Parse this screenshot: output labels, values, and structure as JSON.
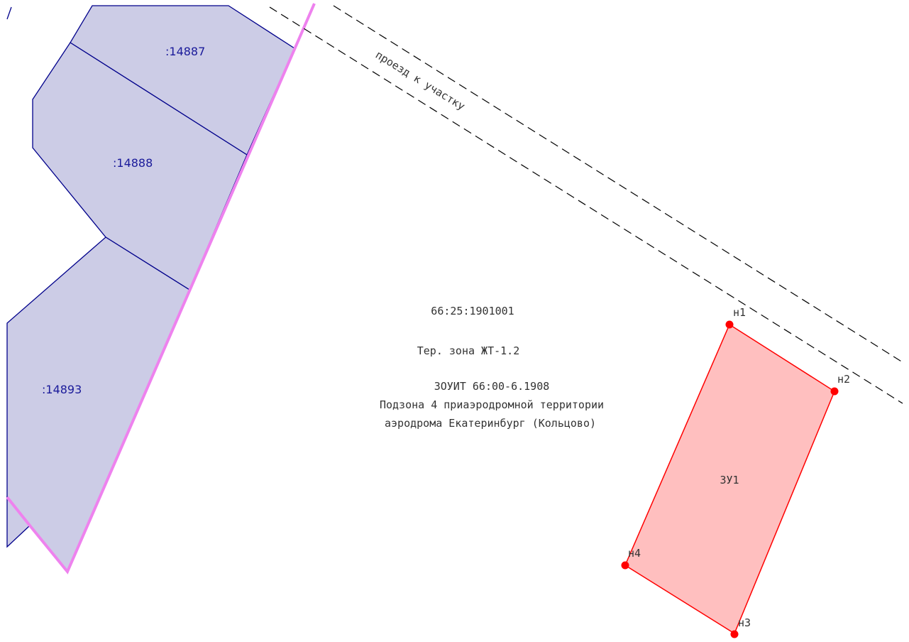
{
  "parcels": [
    {
      "id": "p14887",
      "label": ":14887"
    },
    {
      "id": "p14888",
      "label": ":14888"
    },
    {
      "id": "p14893",
      "label": ":14893"
    }
  ],
  "road": {
    "label": "проезд к участку"
  },
  "quarter": {
    "number": "66:25:1901001"
  },
  "zone": {
    "label": "Тер. зона ЖТ-1.2"
  },
  "zouit": {
    "line1": "ЗОУИТ 66:00-6.1908",
    "line2": "Подзона 4 приаэродромной территории",
    "line3": "аэродрома Екатеринбург (Кольцово)"
  },
  "new_parcel": {
    "label": "ЗУ1",
    "points": [
      {
        "name": "н1"
      },
      {
        "name": "н2"
      },
      {
        "name": "н3"
      },
      {
        "name": "н4"
      }
    ]
  },
  "colors": {
    "existing_fill": "#cccce6",
    "existing_stroke": "#00008b",
    "boundary": "#ee82ee",
    "new_fill": "#ffbfbf",
    "new_stroke": "#ff0000",
    "point": "#ff0000",
    "label_blue": "#1a1a9a"
  }
}
